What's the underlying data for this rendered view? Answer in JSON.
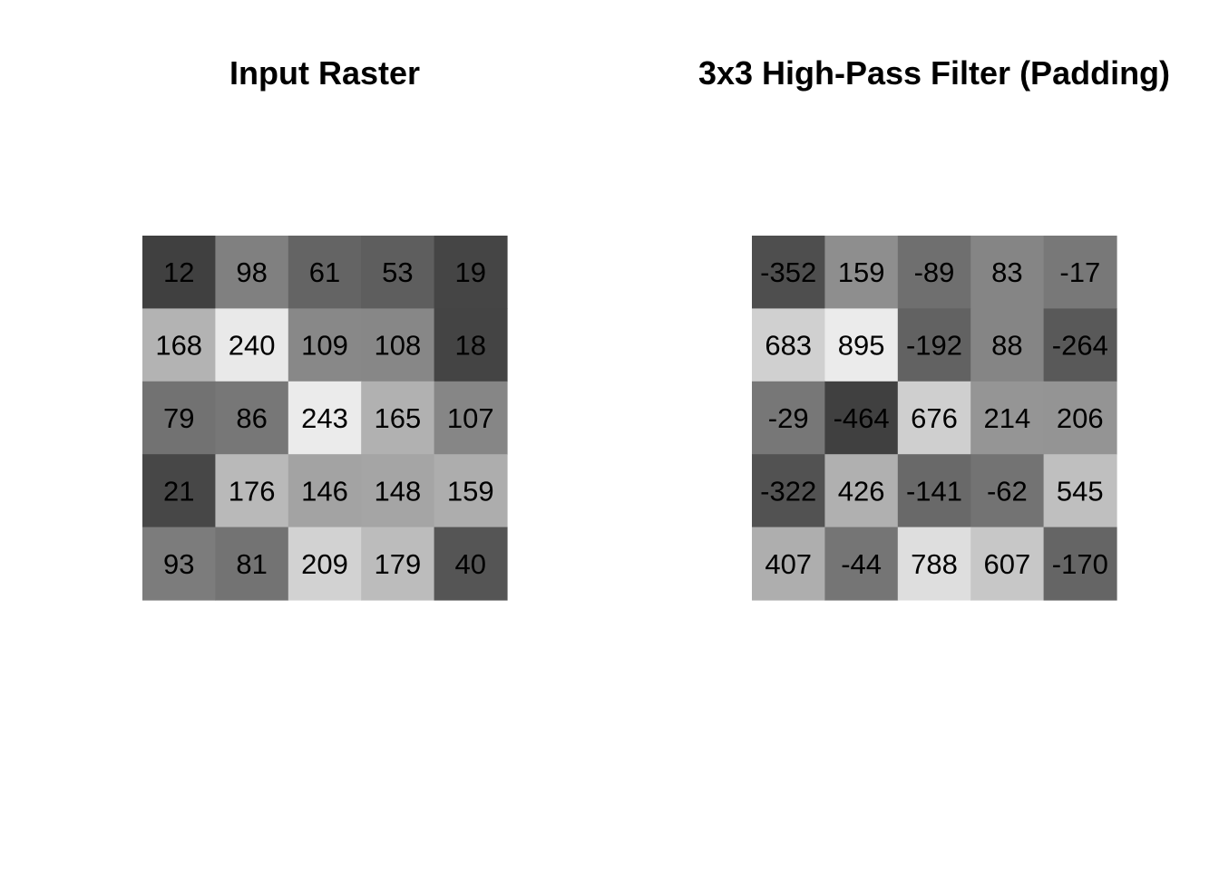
{
  "chart_data": [
    {
      "type": "heatmap",
      "title": "Input Raster",
      "colormap": "grayscale",
      "rows": [
        [
          12,
          98,
          61,
          53,
          19
        ],
        [
          168,
          240,
          109,
          108,
          18
        ],
        [
          79,
          86,
          243,
          165,
          107
        ],
        [
          21,
          176,
          146,
          148,
          159
        ],
        [
          93,
          81,
          209,
          179,
          40
        ]
      ]
    },
    {
      "type": "heatmap",
      "title": "3x3 High-Pass Filter (Padding)",
      "colormap": "grayscale",
      "rows": [
        [
          -352,
          159,
          -89,
          83,
          -17
        ],
        [
          683,
          895,
          -192,
          88,
          -264
        ],
        [
          -29,
          -464,
          676,
          214,
          206
        ],
        [
          -322,
          426,
          -141,
          -62,
          545
        ],
        [
          407,
          -44,
          788,
          607,
          -170
        ]
      ]
    }
  ]
}
